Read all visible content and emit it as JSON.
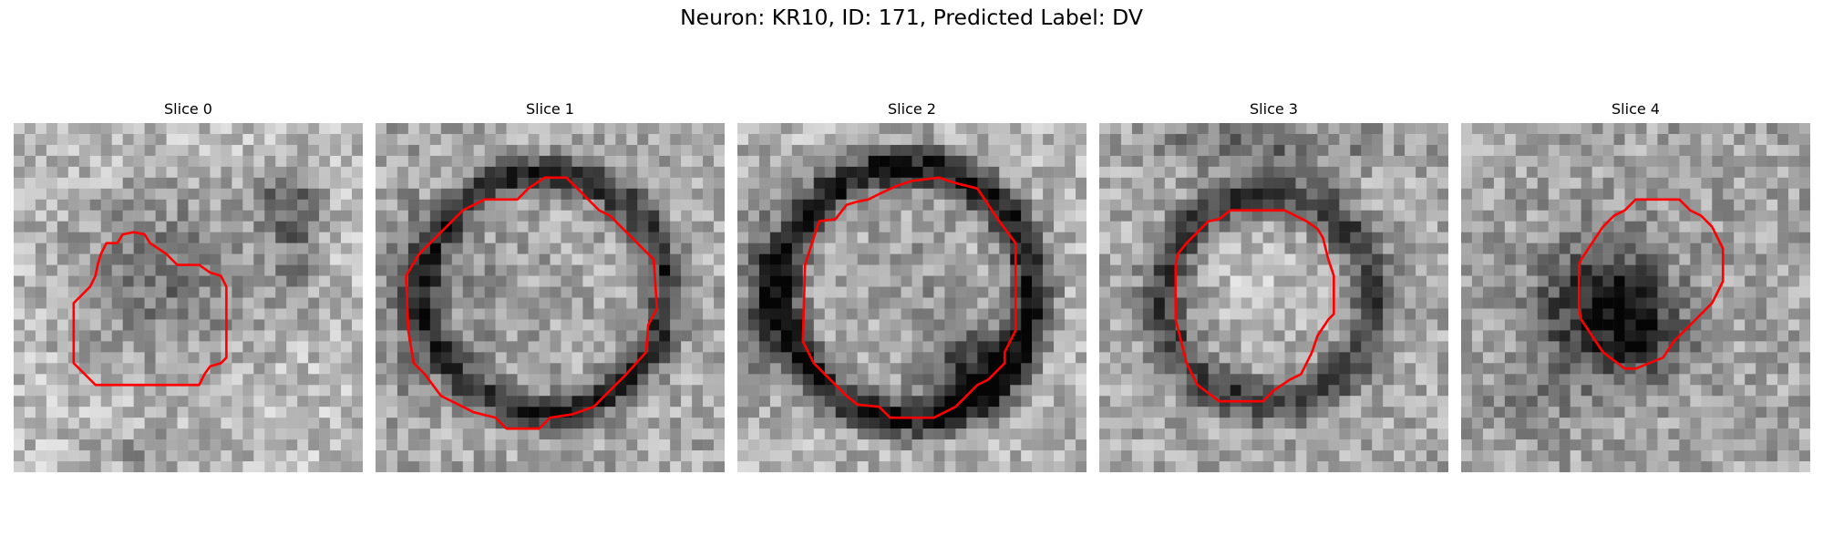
{
  "figure": {
    "title": "Neuron: KR10, ID: 171, Predicted Label: DV"
  },
  "slices": [
    {
      "title": "Slice 0",
      "pattern": "diffuse dim blob with dark arc at upper right",
      "contour_color": "#ff0000"
    },
    {
      "title": "Slice 1",
      "pattern": "round cell with dark boundary ring",
      "contour_color": "#ff0000"
    },
    {
      "title": "Slice 2",
      "pattern": "round cell with strong dark ring and dark lower-right interior",
      "contour_color": "#ff0000"
    },
    {
      "title": "Slice 3",
      "pattern": "bright oval cell with dark ring",
      "contour_color": "#ff0000"
    },
    {
      "title": "Slice 4",
      "pattern": "dark blob offset lower-left of contour",
      "contour_color": "#ff0000"
    }
  ],
  "colors": {
    "contour": "#ff0000",
    "colormap": "grayscale"
  }
}
